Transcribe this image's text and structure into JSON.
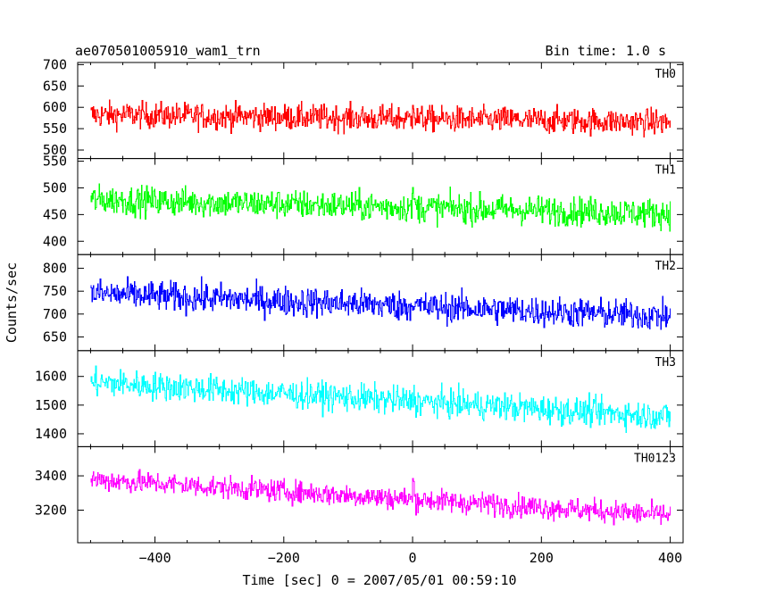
{
  "chart_data": {
    "type": "line",
    "title": "ae070501005910_wam1_trn",
    "subtitle": "Bin time: 1.0 s",
    "xlabel": "Time [sec] 0 = 2007/05/01 00:59:10",
    "ylabel": "Counts/sec",
    "xlim": [
      -520,
      420
    ],
    "x_ticks": [
      -400,
      -200,
      0,
      200,
      400
    ],
    "x_tick_labels": [
      "−400",
      "−200",
      "0",
      "200",
      "400"
    ],
    "x_start": -500,
    "x_end": 400,
    "grid": false,
    "panels": [
      {
        "name": "TH0",
        "color": "#ff0000",
        "ylim": [
          480,
          705
        ],
        "y_ticks": [
          500,
          550,
          600,
          650,
          700
        ],
        "y_tick_labels": [
          "500",
          "550",
          "600",
          "650",
          "700"
        ],
        "level_start": 583,
        "level_end": 565,
        "noise": 28,
        "burst": 55
      },
      {
        "name": "TH1",
        "color": "#00ff00",
        "ylim": [
          375,
          555
        ],
        "y_ticks": [
          400,
          450,
          500,
          550
        ],
        "y_tick_labels": [
          "400",
          "450",
          "500",
          "550"
        ],
        "level_start": 478,
        "level_end": 452,
        "noise": 25,
        "burst": 30
      },
      {
        "name": "TH2",
        "color": "#0000ff",
        "ylim": [
          620,
          830
        ],
        "y_ticks": [
          650,
          700,
          750,
          800
        ],
        "y_tick_labels": [
          "650",
          "700",
          "750",
          "800"
        ],
        "level_start": 745,
        "level_end": 695,
        "noise": 30,
        "burst": 20
      },
      {
        "name": "TH3",
        "color": "#00ffff",
        "ylim": [
          1355,
          1690
        ],
        "y_ticks": [
          1400,
          1500,
          1600
        ],
        "y_tick_labels": [
          "1400",
          "1500",
          "1600"
        ],
        "level_start": 1580,
        "level_end": 1460,
        "noise": 45,
        "burst": 30
      },
      {
        "name": "TH0123",
        "color": "#ff00ff",
        "ylim": [
          3010,
          3570
        ],
        "y_ticks": [
          3200,
          3400
        ],
        "y_tick_labels": [
          "3200",
          "3400"
        ],
        "level_start": 3380,
        "level_end": 3170,
        "noise": 60,
        "burst": 120
      }
    ]
  }
}
